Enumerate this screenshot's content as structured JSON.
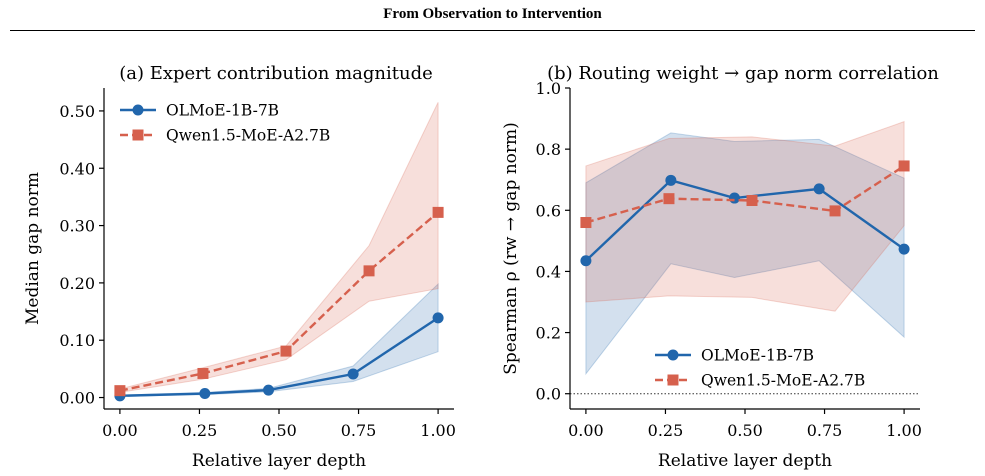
{
  "header": {
    "title": "From Observation to Intervention"
  },
  "colors": {
    "olmoe": "#2166ac",
    "qwen": "#d6604d"
  },
  "chart_data": [
    {
      "type": "line",
      "title": "(a) Expert contribution magnitude",
      "xlabel": "Relative layer depth",
      "ylabel": "Median gap norm",
      "xlim": [
        -0.05,
        1.05
      ],
      "ylim": [
        -0.02,
        0.54
      ],
      "xticks": [
        0.0,
        0.25,
        0.5,
        0.75,
        1.0
      ],
      "xtick_labels": [
        "0.00",
        "0.25",
        "0.50",
        "0.75",
        "1.00"
      ],
      "yticks": [
        0.0,
        0.1,
        0.2,
        0.3,
        0.4,
        0.5
      ],
      "ytick_labels": [
        "0.00",
        "0.10",
        "0.20",
        "0.30",
        "0.40",
        "0.50"
      ],
      "legend_position": "top-left",
      "series": [
        {
          "name": "OLMoE-1B-7B",
          "marker": "circle",
          "linestyle": "solid",
          "x": [
            0.0,
            0.267,
            0.467,
            0.733,
            1.0
          ],
          "y": [
            0.003,
            0.007,
            0.013,
            0.041,
            0.139
          ],
          "lower": [
            0.002,
            0.005,
            0.01,
            0.028,
            0.08
          ],
          "upper": [
            0.004,
            0.009,
            0.016,
            0.055,
            0.198
          ]
        },
        {
          "name": "Qwen1.5-MoE-A2.7B",
          "marker": "square",
          "linestyle": "dashed",
          "x": [
            0.0,
            0.261,
            0.522,
            0.783,
            1.0
          ],
          "y": [
            0.012,
            0.042,
            0.081,
            0.221,
            0.323
          ],
          "lower": [
            0.009,
            0.032,
            0.066,
            0.168,
            0.19
          ],
          "upper": [
            0.015,
            0.052,
            0.09,
            0.265,
            0.515
          ]
        }
      ]
    },
    {
      "type": "line",
      "title": "(b) Routing weight → gap norm correlation",
      "xlabel": "Relative layer depth",
      "ylabel": "Spearman ρ (rw → gap norm)",
      "xlim": [
        -0.05,
        1.05
      ],
      "ylim": [
        -0.05,
        1.0
      ],
      "xticks": [
        0.0,
        0.25,
        0.5,
        0.75,
        1.0
      ],
      "xtick_labels": [
        "0.00",
        "0.25",
        "0.50",
        "0.75",
        "1.00"
      ],
      "yticks": [
        0.0,
        0.2,
        0.4,
        0.6,
        0.8,
        1.0
      ],
      "ytick_labels": [
        "0.0",
        "0.2",
        "0.4",
        "0.6",
        "0.8",
        "1.0"
      ],
      "reference_line_y": 0.0,
      "legend_position": "bottom-right",
      "series": [
        {
          "name": "OLMoE-1B-7B",
          "marker": "circle",
          "linestyle": "solid",
          "x": [
            0.0,
            0.267,
            0.467,
            0.733,
            1.0
          ],
          "y": [
            0.435,
            0.698,
            0.64,
            0.67,
            0.473
          ],
          "lower": [
            0.065,
            0.425,
            0.38,
            0.435,
            0.185
          ],
          "upper": [
            0.69,
            0.853,
            0.825,
            0.832,
            0.705
          ]
        },
        {
          "name": "Qwen1.5-MoE-A2.7B",
          "marker": "square",
          "linestyle": "dashed",
          "x": [
            0.0,
            0.261,
            0.522,
            0.783,
            1.0
          ],
          "y": [
            0.56,
            0.638,
            0.632,
            0.598,
            0.745
          ],
          "lower": [
            0.3,
            0.32,
            0.315,
            0.27,
            0.55
          ],
          "upper": [
            0.745,
            0.835,
            0.84,
            0.81,
            0.89
          ]
        }
      ]
    }
  ]
}
